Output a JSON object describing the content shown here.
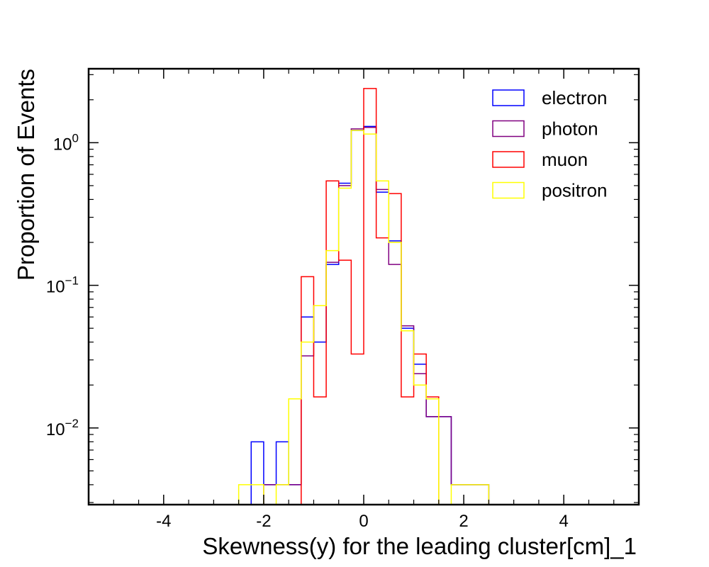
{
  "chart_data": {
    "type": "histogram",
    "xlabel": "Skewness(y) for the leading cluster[cm]_1",
    "ylabel": "Proportion of Events",
    "xlim": [
      -5.5,
      5.5
    ],
    "ylim": [
      0.0029,
      3.3
    ],
    "yscale": "log",
    "x_ticks": [
      {
        "value": -4,
        "label": "-4"
      },
      {
        "value": -2,
        "label": "-2"
      },
      {
        "value": 0,
        "label": "0"
      },
      {
        "value": 2,
        "label": "2"
      },
      {
        "value": 4,
        "label": "4"
      }
    ],
    "y_ticks": [
      {
        "value": 1,
        "base": "10",
        "exp": "0"
      },
      {
        "value": 0.1,
        "base": "10",
        "exp": "−1"
      },
      {
        "value": 0.01,
        "base": "10",
        "exp": "−2"
      }
    ],
    "legend_position": "top-right",
    "bin_edges": [
      -5.0,
      -4.75,
      -4.5,
      -4.25,
      -4.0,
      -3.75,
      -3.5,
      -3.25,
      -3.0,
      -2.75,
      -2.5,
      -2.25,
      -2.0,
      -1.75,
      -1.5,
      -1.25,
      -1.0,
      -0.75,
      -0.5,
      -0.25,
      0.0,
      0.25,
      0.5,
      0.75,
      1.0,
      1.25,
      1.5,
      1.75,
      2.0,
      2.25,
      2.5,
      2.75,
      3.0,
      3.25,
      3.5,
      3.75,
      4.0,
      4.25,
      4.5,
      4.75,
      5.0
    ],
    "series": [
      {
        "name": "electron",
        "color": "#0000ff",
        "values": [
          0,
          0,
          0,
          0,
          0,
          0,
          0,
          0,
          0,
          0,
          0,
          0.008,
          0.004,
          0.008,
          0.004,
          0.06,
          0.04,
          0.14,
          0.52,
          1.22,
          1.3,
          0.45,
          0.205,
          0.05,
          0.028,
          0.012,
          0.012,
          0.004,
          0.004,
          0.004,
          0,
          0,
          0,
          0,
          0,
          0,
          0,
          0,
          0,
          0
        ]
      },
      {
        "name": "photon",
        "color": "#800080",
        "values": [
          0,
          0,
          0,
          0,
          0,
          0,
          0,
          0,
          0,
          0,
          0,
          0,
          0.004,
          0.004,
          0.004,
          0.032,
          0.072,
          0.145,
          0.5,
          1.25,
          1.28,
          0.47,
          0.14,
          0.052,
          0.024,
          0.012,
          0.012,
          0.004,
          0.004,
          0.004,
          0,
          0,
          0,
          0,
          0,
          0,
          0,
          0,
          0,
          0
        ]
      },
      {
        "name": "muon",
        "color": "#ff0000",
        "values": [
          0,
          0,
          0,
          0,
          0,
          0,
          0,
          0,
          0,
          0,
          0,
          0,
          0,
          0,
          0,
          0.115,
          0.0165,
          0.54,
          0.15,
          0.033,
          2.4,
          0.215,
          0.44,
          0.0165,
          0.033,
          0.0165,
          0,
          0,
          0,
          0,
          0,
          0,
          0,
          0,
          0,
          0,
          0,
          0,
          0,
          0
        ]
      },
      {
        "name": "positron",
        "color": "#ffff00",
        "values": [
          0,
          0,
          0,
          0,
          0,
          0,
          0,
          0,
          0,
          0,
          0.004,
          0.004,
          0,
          0.004,
          0.016,
          0.04,
          0.072,
          0.175,
          0.48,
          1.22,
          1.15,
          0.54,
          0.2,
          0.048,
          0.02,
          0.016,
          0,
          0.004,
          0.004,
          0.004,
          0,
          0,
          0,
          0,
          0,
          0,
          0,
          0,
          0,
          0
        ]
      }
    ]
  }
}
